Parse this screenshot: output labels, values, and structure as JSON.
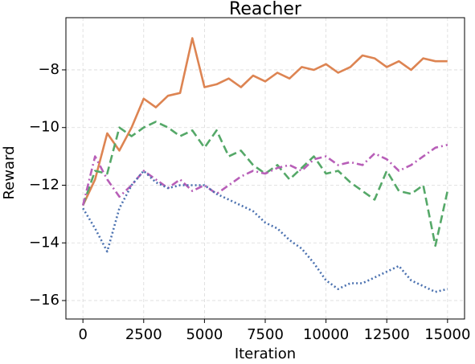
{
  "chart_data": {
    "type": "line",
    "title": "Reacher",
    "x_label": "Iteration",
    "y_label": "Reward",
    "x": [
      0,
      500,
      1000,
      1500,
      2000,
      2500,
      3000,
      3500,
      4000,
      4500,
      5000,
      5500,
      6000,
      6500,
      7000,
      7500,
      8000,
      8500,
      9000,
      9500,
      10000,
      10500,
      11000,
      11500,
      12000,
      12500,
      13000,
      13500,
      14000,
      14500,
      15000
    ],
    "series": [
      {
        "color": "#dd8452",
        "linestyle": "solid",
        "values": [
          -12.7,
          -11.8,
          -10.2,
          -10.8,
          -10.0,
          -9.0,
          -9.3,
          -8.9,
          -8.8,
          -6.9,
          -8.6,
          -8.5,
          -8.3,
          -8.6,
          -8.2,
          -8.4,
          -8.1,
          -8.3,
          -7.9,
          -8.0,
          -7.8,
          -8.1,
          -7.9,
          -7.5,
          -7.6,
          -7.9,
          -7.7,
          -8.0,
          -7.6,
          -7.7,
          -7.7
        ]
      },
      {
        "color": "#55a868",
        "linestyle": "dashed",
        "values": [
          -12.7,
          -11.5,
          -11.6,
          -10.0,
          -10.3,
          -10.0,
          -9.8,
          -10.0,
          -10.3,
          -10.1,
          -10.7,
          -10.1,
          -11.0,
          -10.8,
          -11.3,
          -11.6,
          -11.3,
          -11.8,
          -11.4,
          -11.0,
          -11.6,
          -11.5,
          -11.9,
          -12.2,
          -12.5,
          -11.5,
          -12.2,
          -12.3,
          -12.0,
          -14.1,
          -12.2
        ]
      },
      {
        "color": "#b85fb8",
        "linestyle": "dashdot",
        "values": [
          -12.7,
          -11.0,
          -11.8,
          -12.4,
          -12.0,
          -11.5,
          -11.8,
          -12.1,
          -11.8,
          -12.2,
          -12.0,
          -12.3,
          -12.0,
          -11.7,
          -11.5,
          -11.6,
          -11.4,
          -11.3,
          -11.5,
          -11.1,
          -11.0,
          -11.3,
          -11.2,
          -11.3,
          -10.9,
          -11.1,
          -11.5,
          -11.3,
          -11.0,
          -10.7,
          -10.6
        ]
      },
      {
        "color": "#4c72b0",
        "linestyle": "dotted",
        "values": [
          -12.8,
          -13.5,
          -14.3,
          -12.8,
          -12.0,
          -11.5,
          -11.9,
          -12.1,
          -12.0,
          -12.0,
          -12.0,
          -12.3,
          -12.5,
          -12.7,
          -12.9,
          -13.3,
          -13.5,
          -13.9,
          -14.2,
          -14.7,
          -15.3,
          -15.6,
          -15.4,
          -15.4,
          -15.2,
          -15.0,
          -14.8,
          -15.3,
          -15.5,
          -15.7,
          -15.6
        ]
      }
    ],
    "xlim": [
      -700,
      15700
    ],
    "ylim": [
      -16.64,
      -6.19
    ],
    "xticks": [
      0,
      2500,
      5000,
      7500,
      10000,
      12500,
      15000
    ],
    "yticks": [
      {
        "value": -16,
        "label": "−16"
      },
      {
        "value": -14,
        "label": "−14"
      },
      {
        "value": -12,
        "label": "−12"
      },
      {
        "value": -10,
        "label": "−10"
      },
      {
        "value": -8,
        "label": "−8"
      }
    ],
    "grid": true
  }
}
